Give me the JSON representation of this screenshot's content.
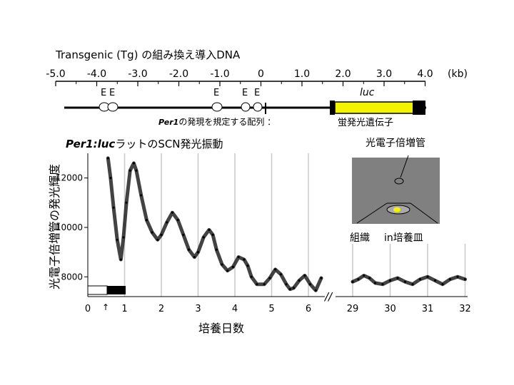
{
  "construct": {
    "title": "Transgenic (Tg) の組み換え導入DNA",
    "scale_ticks": [
      "-5.0",
      "-4.0",
      "-3.0",
      "-2.0",
      "-1.0",
      "0",
      "1.0",
      "2.0",
      "3.0",
      "4.0"
    ],
    "unit": "(kb)",
    "e_label": "E",
    "gene_label": "luc",
    "promoter_gene": "Per1",
    "promoter_rest": "の発現を規定する配列 ：",
    "reporter_label": "蛍発光遺伝子",
    "colors": {
      "reporter_fill": "#f4f400",
      "line": "#000000"
    }
  },
  "chart": {
    "title_bold": "Per1:luc",
    "title_rest": "ラットのSCN発光振動",
    "ylabel": "光電子倍増管の発光輝度",
    "xlabel": "培養日数",
    "y_ticks": [
      "8000",
      "10000",
      "12000"
    ],
    "x_ticks_left": [
      "0",
      "1",
      "2",
      "3",
      "4",
      "5",
      "6"
    ],
    "x_ticks_right": [
      "29",
      "30",
      "31",
      "32"
    ],
    "axis_break": "//",
    "arrow_marker": "↑"
  },
  "chart_data": {
    "type": "line",
    "xlabel": "培養日数",
    "ylabel": "光電子倍増管の発光輝度",
    "ylim": [
      7200,
      13000
    ],
    "segments": [
      {
        "x": [
          0.55,
          0.62,
          0.7,
          0.8,
          0.9,
          0.97,
          1.05,
          1.15,
          1.25,
          1.32,
          1.45,
          1.6,
          1.75,
          1.9,
          2.0,
          2.15,
          2.3,
          2.45,
          2.6,
          2.75,
          2.9,
          3.0,
          3.15,
          3.3,
          3.4,
          3.5,
          3.65,
          3.8,
          3.95,
          4.1,
          4.25,
          4.35,
          4.45,
          4.6,
          4.8,
          4.95,
          5.1,
          5.25,
          5.4,
          5.5,
          5.6,
          5.75,
          5.9,
          6.05,
          6.2,
          6.35
        ],
        "y": [
          12800,
          12000,
          10800,
          9500,
          8700,
          9600,
          11000,
          12300,
          12600,
          12300,
          11300,
          10300,
          9800,
          9500,
          9700,
          10200,
          10600,
          10300,
          9700,
          9100,
          8800,
          9000,
          9600,
          9900,
          9700,
          9100,
          8500,
          8250,
          8400,
          8800,
          8700,
          8450,
          8000,
          7700,
          7700,
          7950,
          8300,
          8100,
          7700,
          7500,
          7550,
          7850,
          8050,
          7700,
          7450,
          7950
        ]
      },
      {
        "x": [
          29.0,
          29.15,
          29.3,
          29.45,
          29.6,
          29.8,
          30.0,
          30.2,
          30.4,
          30.6,
          30.8,
          31.0,
          31.2,
          31.4,
          31.6,
          31.8,
          32.0
        ],
        "y": [
          7800,
          7900,
          8050,
          7950,
          7750,
          7700,
          7850,
          7950,
          7800,
          7700,
          7900,
          8000,
          7850,
          7700,
          7900,
          8000,
          7900
        ]
      }
    ]
  },
  "inset": {
    "pmt_label": "光電子倍増管",
    "tissue_label": "組織",
    "dish_label": "in培養皿",
    "colors": {
      "background": "#808080",
      "tissue": "#f4f400"
    }
  }
}
